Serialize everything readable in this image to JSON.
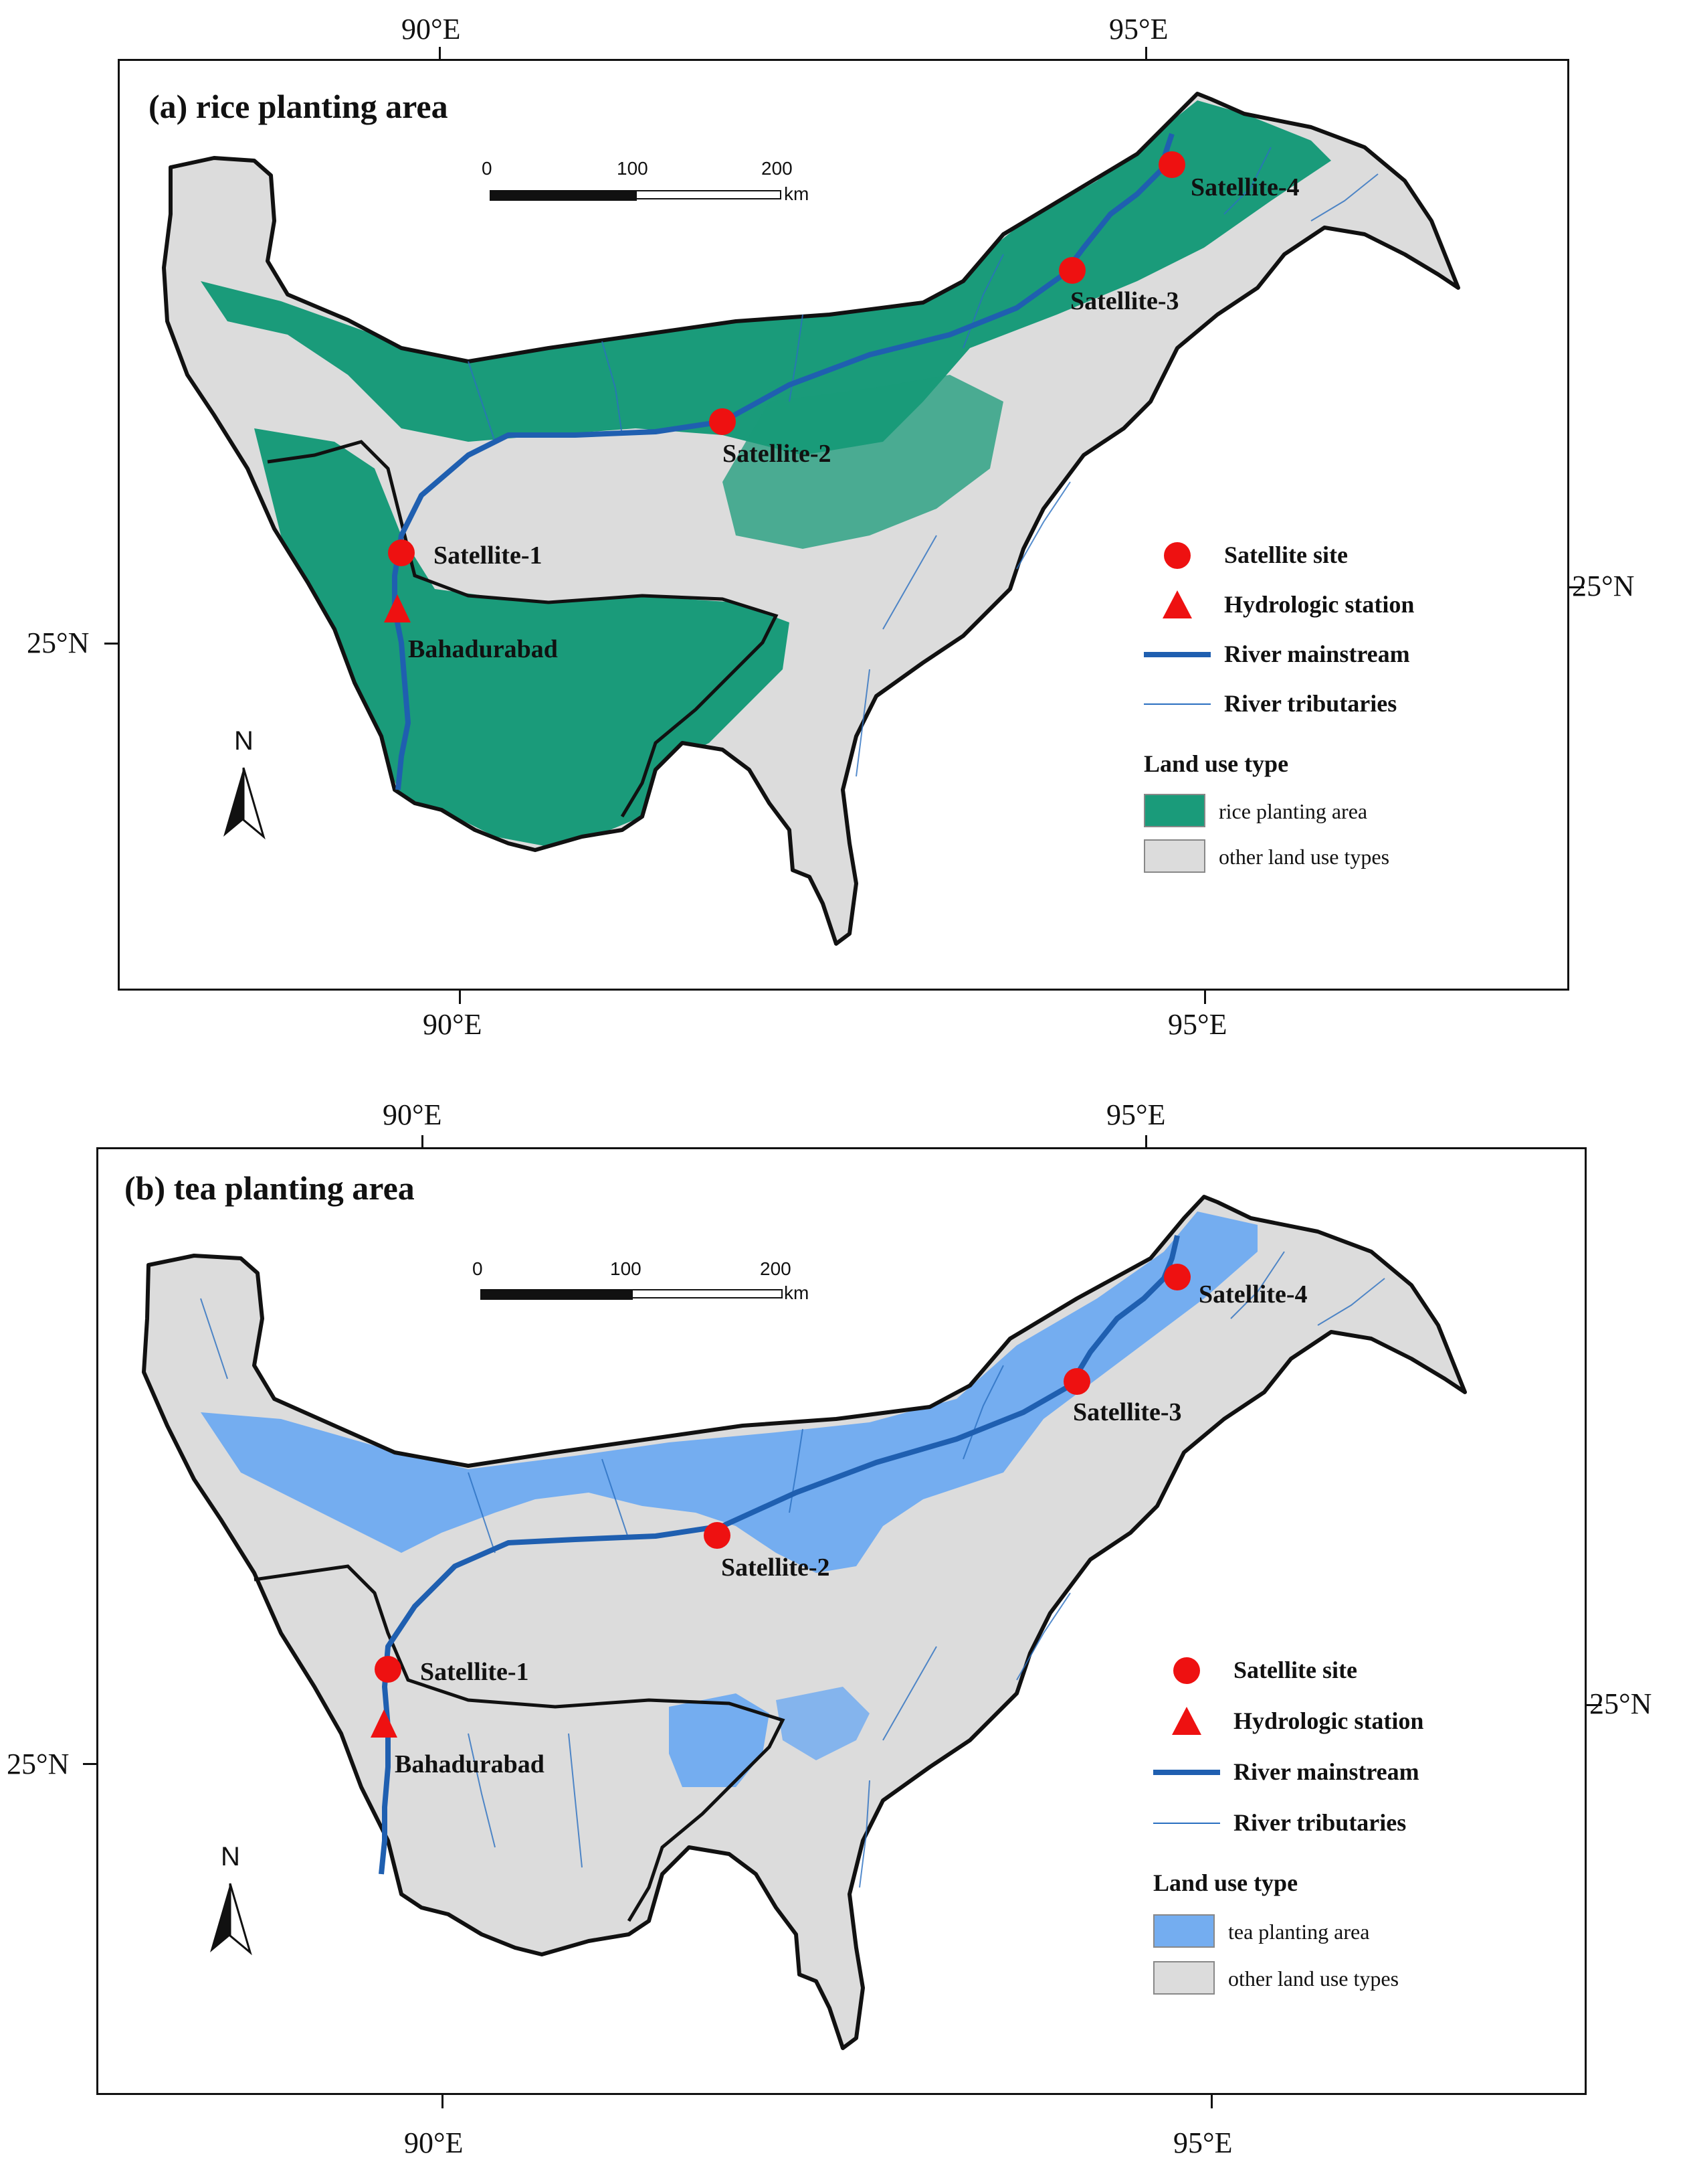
{
  "figure": {
    "panels": [
      {
        "id": "a",
        "title": "(a) rice planting area",
        "landuse_color": "#1a9b7a",
        "landuse_label": "rice planting area",
        "labels": {
          "lon_top_90": "90°E",
          "lon_top_95": "95°E",
          "lon_bottom_90": "90°E",
          "lon_bottom_95": "95°E",
          "lat_left": "25°N",
          "lat_right": "25°N"
        },
        "scale_bar": {
          "ticks": [
            "0",
            "100",
            "200"
          ],
          "unit": "km"
        },
        "north_label": "N"
      },
      {
        "id": "b",
        "title": "(b) tea planting area",
        "landuse_color": "#74adf0",
        "landuse_label": "tea planting area",
        "labels": {
          "lon_top_90": "90°E",
          "lon_top_95": "95°E",
          "lon_bottom_90": "90°E",
          "lon_bottom_95": "95°E",
          "lat_left": "25°N",
          "lat_right": "25°N"
        },
        "scale_bar": {
          "ticks": [
            "0",
            "100",
            "200"
          ],
          "unit": "km"
        },
        "north_label": "N"
      }
    ],
    "sites": {
      "satellite_1": "Satellite-1",
      "satellite_2": "Satellite-2",
      "satellite_3": "Satellite-3",
      "satellite_4": "Satellite-4",
      "station": "Bahadurabad"
    },
    "legend": {
      "satellite_site": "Satellite site",
      "hydrologic_station": "Hydrologic station",
      "river_mainstream": "River mainstream",
      "river_tributaries": "River tributaries",
      "land_use_heading": "Land use type",
      "other_land_use": "other land use types"
    },
    "colors": {
      "site_marker": "#ee1111",
      "river_main": "#1f5fb0",
      "river_trib": "#2a6fc0",
      "other_land": "#dcdcdc",
      "basin_outline": "#111111"
    }
  }
}
